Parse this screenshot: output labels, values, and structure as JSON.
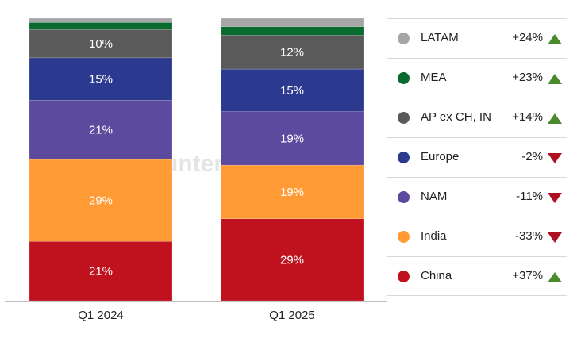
{
  "chart_data": {
    "type": "bar",
    "stacked": true,
    "normalized": true,
    "categories": [
      "Q1 2024",
      "Q1 2025"
    ],
    "series": [
      {
        "name": "China",
        "color": "#c0111f",
        "values": [
          21,
          29
        ],
        "labels": [
          "21%",
          "29%"
        ]
      },
      {
        "name": "India",
        "color": "#ff9a35",
        "values": [
          29,
          19
        ],
        "labels": [
          "29%",
          "19%"
        ]
      },
      {
        "name": "NAM",
        "color": "#5b4a9e",
        "values": [
          21,
          19
        ],
        "labels": [
          "21%",
          "19%"
        ]
      },
      {
        "name": "Europe",
        "color": "#2b3a8f",
        "values": [
          15,
          15
        ],
        "labels": [
          "15%",
          "15%"
        ]
      },
      {
        "name": "AP ex CH, IN",
        "color": "#5a5a5a",
        "values": [
          10,
          12
        ],
        "labels": [
          "10%",
          "12%"
        ]
      },
      {
        "name": "MEA",
        "color": "#0a6b2e",
        "values": [
          2.5,
          3.0
        ],
        "labels": [
          "",
          ""
        ]
      },
      {
        "name": "LATAM",
        "color": "#a6a6a6",
        "values": [
          1.5,
          3.0
        ],
        "labels": [
          "",
          ""
        ]
      }
    ]
  },
  "legend": [
    {
      "name": "LATAM",
      "color": "#a6a6a6",
      "change": "+24%",
      "direction": "up"
    },
    {
      "name": "MEA",
      "color": "#0a6b2e",
      "change": "+23%",
      "direction": "up"
    },
    {
      "name": "AP ex CH, IN",
      "color": "#5a5a5a",
      "change": "+14%",
      "direction": "up"
    },
    {
      "name": "Europe",
      "color": "#2b3a8f",
      "change": "-2%",
      "direction": "down"
    },
    {
      "name": "NAM",
      "color": "#5b4a9e",
      "change": "-11%",
      "direction": "down"
    },
    {
      "name": "India",
      "color": "#ff9a35",
      "change": "-33%",
      "direction": "down"
    },
    {
      "name": "China",
      "color": "#c0111f",
      "change": "+37%",
      "direction": "up"
    }
  ],
  "watermark": "Counterpoint"
}
